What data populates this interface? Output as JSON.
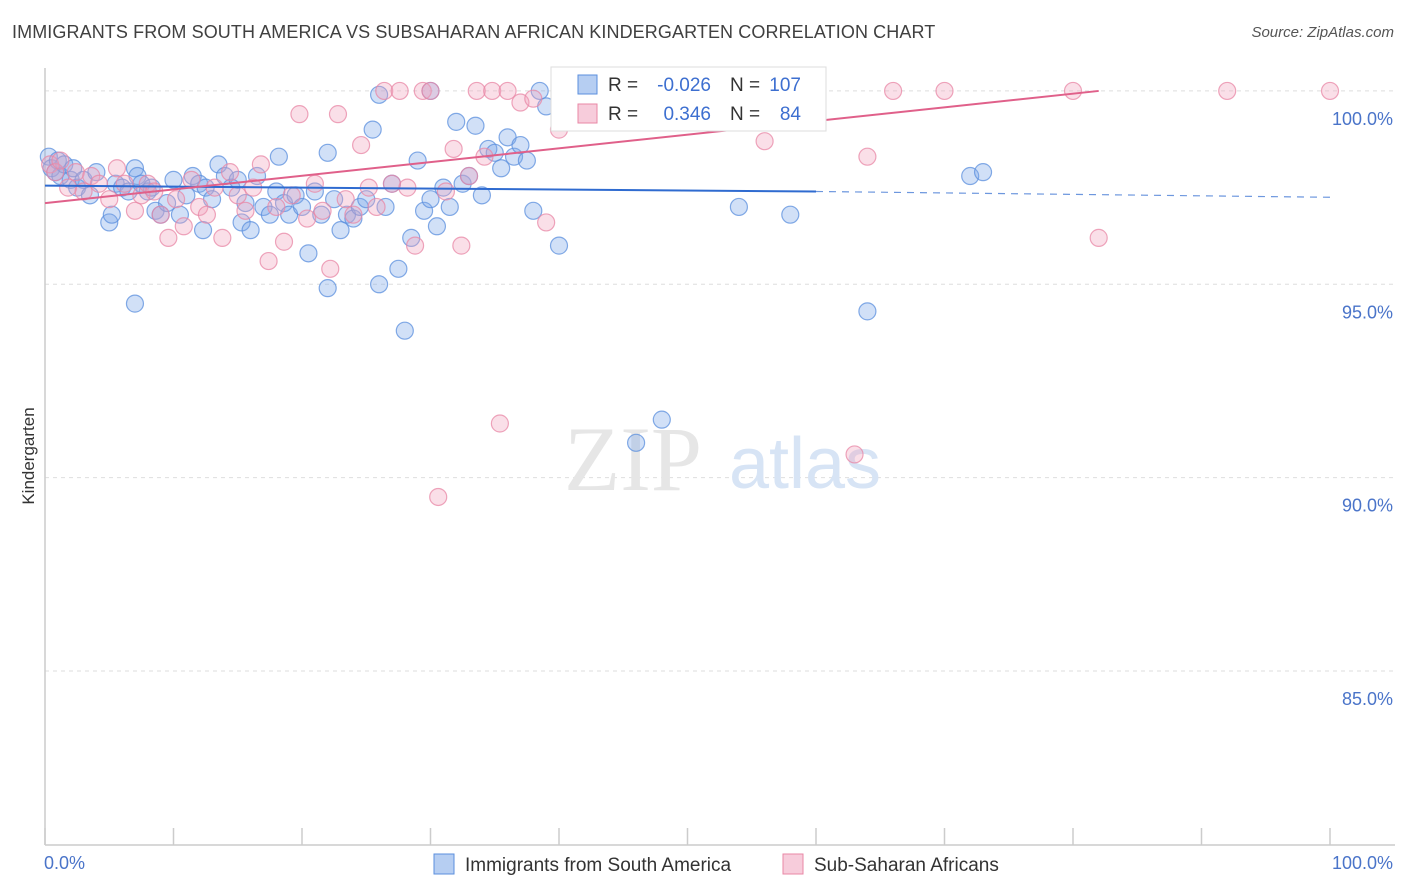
{
  "title": "IMMIGRANTS FROM SOUTH AMERICA VS SUBSAHARAN AFRICAN KINDERGARTEN CORRELATION CHART",
  "source": "Source: ZipAtlas.com",
  "watermark": {
    "zip": "ZIP",
    "atlas": "atlas"
  },
  "chart_data": {
    "type": "scatter",
    "title": "IMMIGRANTS FROM SOUTH AMERICA VS SUBSAHARAN AFRICAN KINDERGARTEN CORRELATION CHART",
    "xlabel": "",
    "ylabel": "Kindergarten",
    "xlim": [
      0,
      100
    ],
    "ylim": [
      80.5,
      100.8
    ],
    "x_tick_labels": [
      "0.0%",
      "100.0%"
    ],
    "y_ticks": [
      100,
      95,
      90,
      85
    ],
    "y_tick_labels": [
      "100.0%",
      "95.0%",
      "90.0%",
      "85.0%"
    ],
    "grid": true,
    "legend_placement": "top-center",
    "series": [
      {
        "name": "Immigrants from South America",
        "color": "#7aa6e8",
        "R": "-0.026",
        "N": "107",
        "trend": {
          "x0": 0,
          "y0": 97.55,
          "x1": 60,
          "y1": 97.4,
          "dash_x1": 100,
          "dash_y1": 97.25
        },
        "points": [
          [
            0.3,
            98.3
          ],
          [
            0.5,
            98.0
          ],
          [
            0.8,
            97.9
          ],
          [
            1,
            98.2
          ],
          [
            1.2,
            97.8
          ],
          [
            1.5,
            98.1
          ],
          [
            2,
            97.7
          ],
          [
            2.2,
            98.0
          ],
          [
            2.5,
            97.5
          ],
          [
            3,
            97.7
          ],
          [
            3.5,
            97.3
          ],
          [
            4,
            97.9
          ],
          [
            5,
            96.6
          ],
          [
            5.2,
            96.8
          ],
          [
            5.5,
            97.6
          ],
          [
            6,
            97.5
          ],
          [
            6.5,
            97.4
          ],
          [
            7,
            98.0
          ],
          [
            7.2,
            97.8
          ],
          [
            7.5,
            97.6
          ],
          [
            8,
            97.4
          ],
          [
            8.3,
            97.5
          ],
          [
            8.6,
            96.9
          ],
          [
            9,
            96.8
          ],
          [
            9.5,
            97.1
          ],
          [
            10,
            97.7
          ],
          [
            10.5,
            96.8
          ],
          [
            11,
            97.3
          ],
          [
            11.5,
            97.8
          ],
          [
            12,
            97.6
          ],
          [
            12.3,
            96.4
          ],
          [
            12.5,
            97.5
          ],
          [
            13,
            97.2
          ],
          [
            13.5,
            98.1
          ],
          [
            14,
            97.8
          ],
          [
            14.5,
            97.5
          ],
          [
            15,
            97.7
          ],
          [
            15.3,
            96.6
          ],
          [
            15.6,
            97.1
          ],
          [
            16,
            96.4
          ],
          [
            16.5,
            97.8
          ],
          [
            17,
            97.0
          ],
          [
            17.5,
            96.8
          ],
          [
            18,
            97.4
          ],
          [
            18.2,
            98.3
          ],
          [
            18.6,
            97.1
          ],
          [
            19,
            96.8
          ],
          [
            19.5,
            97.3
          ],
          [
            20,
            97.0
          ],
          [
            20.5,
            95.8
          ],
          [
            21,
            97.4
          ],
          [
            21.5,
            96.8
          ],
          [
            22,
            98.4
          ],
          [
            22.5,
            97.2
          ],
          [
            23,
            96.4
          ],
          [
            23.5,
            96.8
          ],
          [
            24,
            96.7
          ],
          [
            24.5,
            97.0
          ],
          [
            25,
            97.2
          ],
          [
            25.5,
            99.0
          ],
          [
            26,
            95.0
          ],
          [
            26.5,
            97.0
          ],
          [
            27,
            97.6
          ],
          [
            27.5,
            95.4
          ],
          [
            28,
            93.8
          ],
          [
            28.5,
            96.2
          ],
          [
            29,
            98.2
          ],
          [
            29.5,
            96.9
          ],
          [
            30,
            97.2
          ],
          [
            30.5,
            96.5
          ],
          [
            31,
            97.5
          ],
          [
            31.5,
            97.0
          ],
          [
            32,
            99.2
          ],
          [
            32.5,
            97.6
          ],
          [
            33,
            97.8
          ],
          [
            33.5,
            99.1
          ],
          [
            34,
            97.3
          ],
          [
            34.5,
            98.5
          ],
          [
            35,
            98.4
          ],
          [
            35.5,
            98.0
          ],
          [
            36,
            98.8
          ],
          [
            36.5,
            98.3
          ],
          [
            37,
            98.6
          ],
          [
            37.5,
            98.2
          ],
          [
            38,
            96.9
          ],
          [
            38.5,
            100.0
          ],
          [
            39,
            99.6
          ],
          [
            40,
            96.0
          ],
          [
            41,
            99.8
          ],
          [
            42,
            99.5
          ],
          [
            43,
            99.2
          ],
          [
            44,
            100.0
          ],
          [
            45,
            99.6
          ],
          [
            46,
            90.9
          ],
          [
            47,
            100.0
          ],
          [
            48,
            91.5
          ],
          [
            50,
            100.0
          ],
          [
            54,
            97.0
          ],
          [
            58,
            96.8
          ],
          [
            64,
            94.3
          ],
          [
            72,
            97.8
          ],
          [
            73,
            97.9
          ],
          [
            7,
            94.5
          ],
          [
            22,
            94.9
          ],
          [
            30,
            100.0
          ],
          [
            26,
            99.9
          ],
          [
            50,
            100.0
          ]
        ]
      },
      {
        "name": "Sub-Saharan Africans",
        "color": "#f1a3bd",
        "R": "0.346",
        "N": "84",
        "trend": {
          "x0": 0,
          "y0": 97.1,
          "x1": 82,
          "y1": 100.0
        },
        "points": [
          [
            0.4,
            98.1
          ],
          [
            0.8,
            97.9
          ],
          [
            1.2,
            98.2
          ],
          [
            1.8,
            97.5
          ],
          [
            2.4,
            97.9
          ],
          [
            3,
            97.4
          ],
          [
            3.6,
            97.8
          ],
          [
            4.2,
            97.6
          ],
          [
            5,
            97.2
          ],
          [
            5.6,
            98.0
          ],
          [
            6.2,
            97.6
          ],
          [
            7,
            96.9
          ],
          [
            7.5,
            97.3
          ],
          [
            8,
            97.6
          ],
          [
            8.5,
            97.4
          ],
          [
            9,
            96.8
          ],
          [
            9.6,
            96.2
          ],
          [
            10.2,
            97.2
          ],
          [
            10.8,
            96.5
          ],
          [
            11.4,
            97.7
          ],
          [
            12,
            97.0
          ],
          [
            12.6,
            96.8
          ],
          [
            13.2,
            97.5
          ],
          [
            13.8,
            96.2
          ],
          [
            14.4,
            97.9
          ],
          [
            15,
            97.3
          ],
          [
            15.6,
            96.9
          ],
          [
            16.2,
            97.5
          ],
          [
            16.8,
            98.1
          ],
          [
            17.4,
            95.6
          ],
          [
            18,
            97.0
          ],
          [
            18.6,
            96.1
          ],
          [
            19.2,
            97.3
          ],
          [
            19.8,
            99.4
          ],
          [
            20.4,
            96.7
          ],
          [
            21,
            97.6
          ],
          [
            21.6,
            96.9
          ],
          [
            22.2,
            95.4
          ],
          [
            22.8,
            99.4
          ],
          [
            23.4,
            97.2
          ],
          [
            24,
            96.8
          ],
          [
            24.6,
            98.6
          ],
          [
            25.2,
            97.5
          ],
          [
            25.8,
            97.0
          ],
          [
            26.4,
            100.0
          ],
          [
            27,
            97.6
          ],
          [
            27.6,
            100.0
          ],
          [
            28.2,
            97.5
          ],
          [
            28.8,
            96.0
          ],
          [
            29.4,
            100.0
          ],
          [
            30,
            100.0
          ],
          [
            30.6,
            89.5
          ],
          [
            31.2,
            97.4
          ],
          [
            31.8,
            98.5
          ],
          [
            32.4,
            96.0
          ],
          [
            33,
            97.8
          ],
          [
            33.6,
            100.0
          ],
          [
            34.2,
            98.3
          ],
          [
            34.8,
            100.0
          ],
          [
            35.4,
            91.4
          ],
          [
            36,
            100.0
          ],
          [
            37,
            99.7
          ],
          [
            38,
            99.8
          ],
          [
            39,
            96.6
          ],
          [
            40,
            99.0
          ],
          [
            40.5,
            100.0
          ],
          [
            41,
            99.5
          ],
          [
            42,
            100.0
          ],
          [
            43,
            100.0
          ],
          [
            44,
            99.8
          ],
          [
            46,
            100.0
          ],
          [
            48,
            100.0
          ],
          [
            50,
            99.3
          ],
          [
            53,
            100.0
          ],
          [
            56,
            98.7
          ],
          [
            59,
            100.0
          ],
          [
            63,
            90.6
          ],
          [
            64,
            98.3
          ],
          [
            66,
            100.0
          ],
          [
            70,
            100.0
          ],
          [
            80,
            100.0
          ],
          [
            82,
            96.2
          ],
          [
            92,
            100.0
          ],
          [
            100,
            100.0
          ]
        ]
      }
    ]
  }
}
